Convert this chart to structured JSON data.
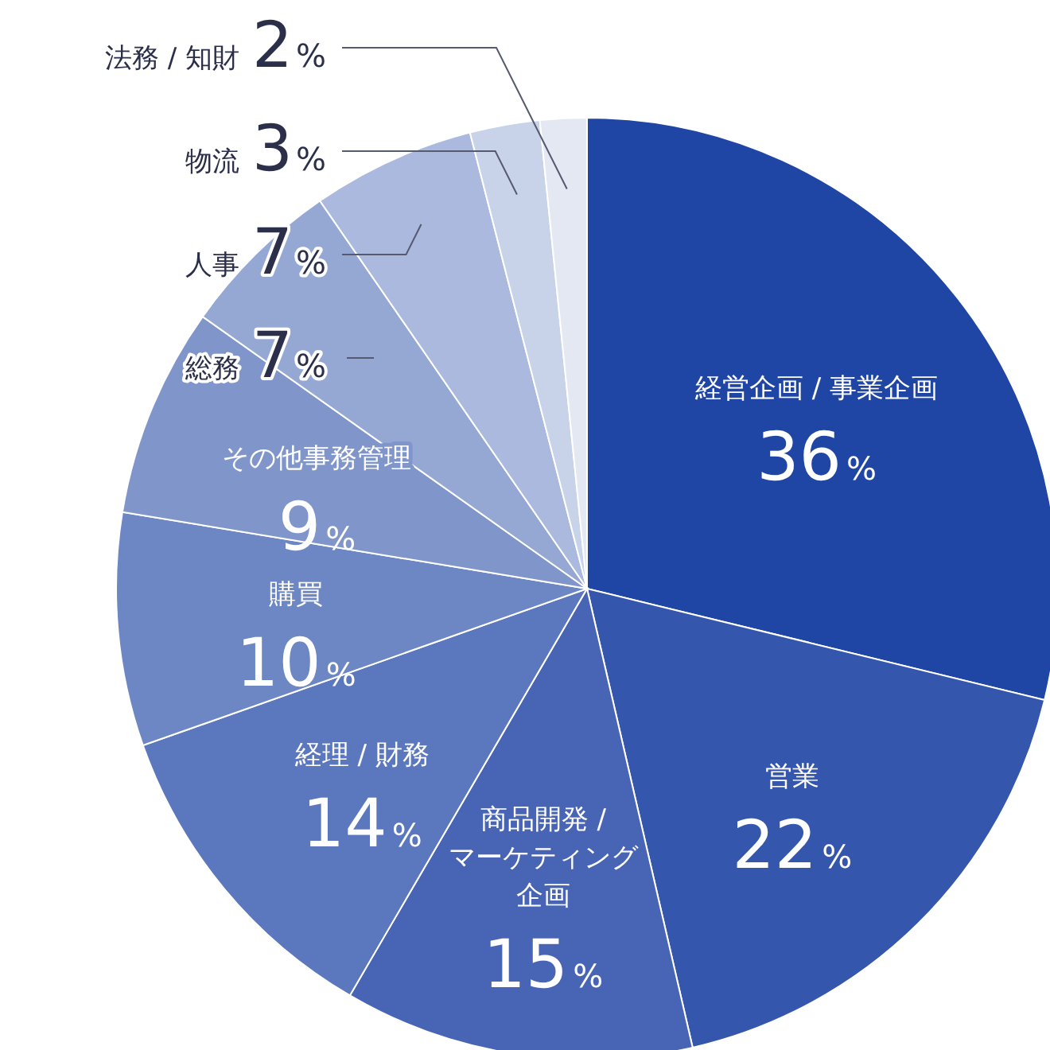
{
  "chart_data": {
    "type": "pie",
    "categories": [
      "経営企画 / 事業企画",
      "営業",
      "商品開発 / マーケティング企画",
      "経理 / 財務",
      "購買",
      "その他事務管理",
      "総務",
      "人事",
      "物流",
      "法務 / 知財"
    ],
    "values": [
      36,
      22,
      15,
      14,
      10,
      9,
      7,
      7,
      3,
      2
    ],
    "value_labels": [
      "36%",
      "22%",
      "15%",
      "14%",
      "10%",
      "9%",
      "7%",
      "7%",
      "3%",
      "2%"
    ],
    "colors": [
      "#1f45a5",
      "#3457ad",
      "#4864b4",
      "#5b77bd",
      "#6d87c4",
      "#8096cb",
      "#95a8d4",
      "#aab9dd",
      "#c8d2e9",
      "#e3e8f3"
    ]
  }
}
